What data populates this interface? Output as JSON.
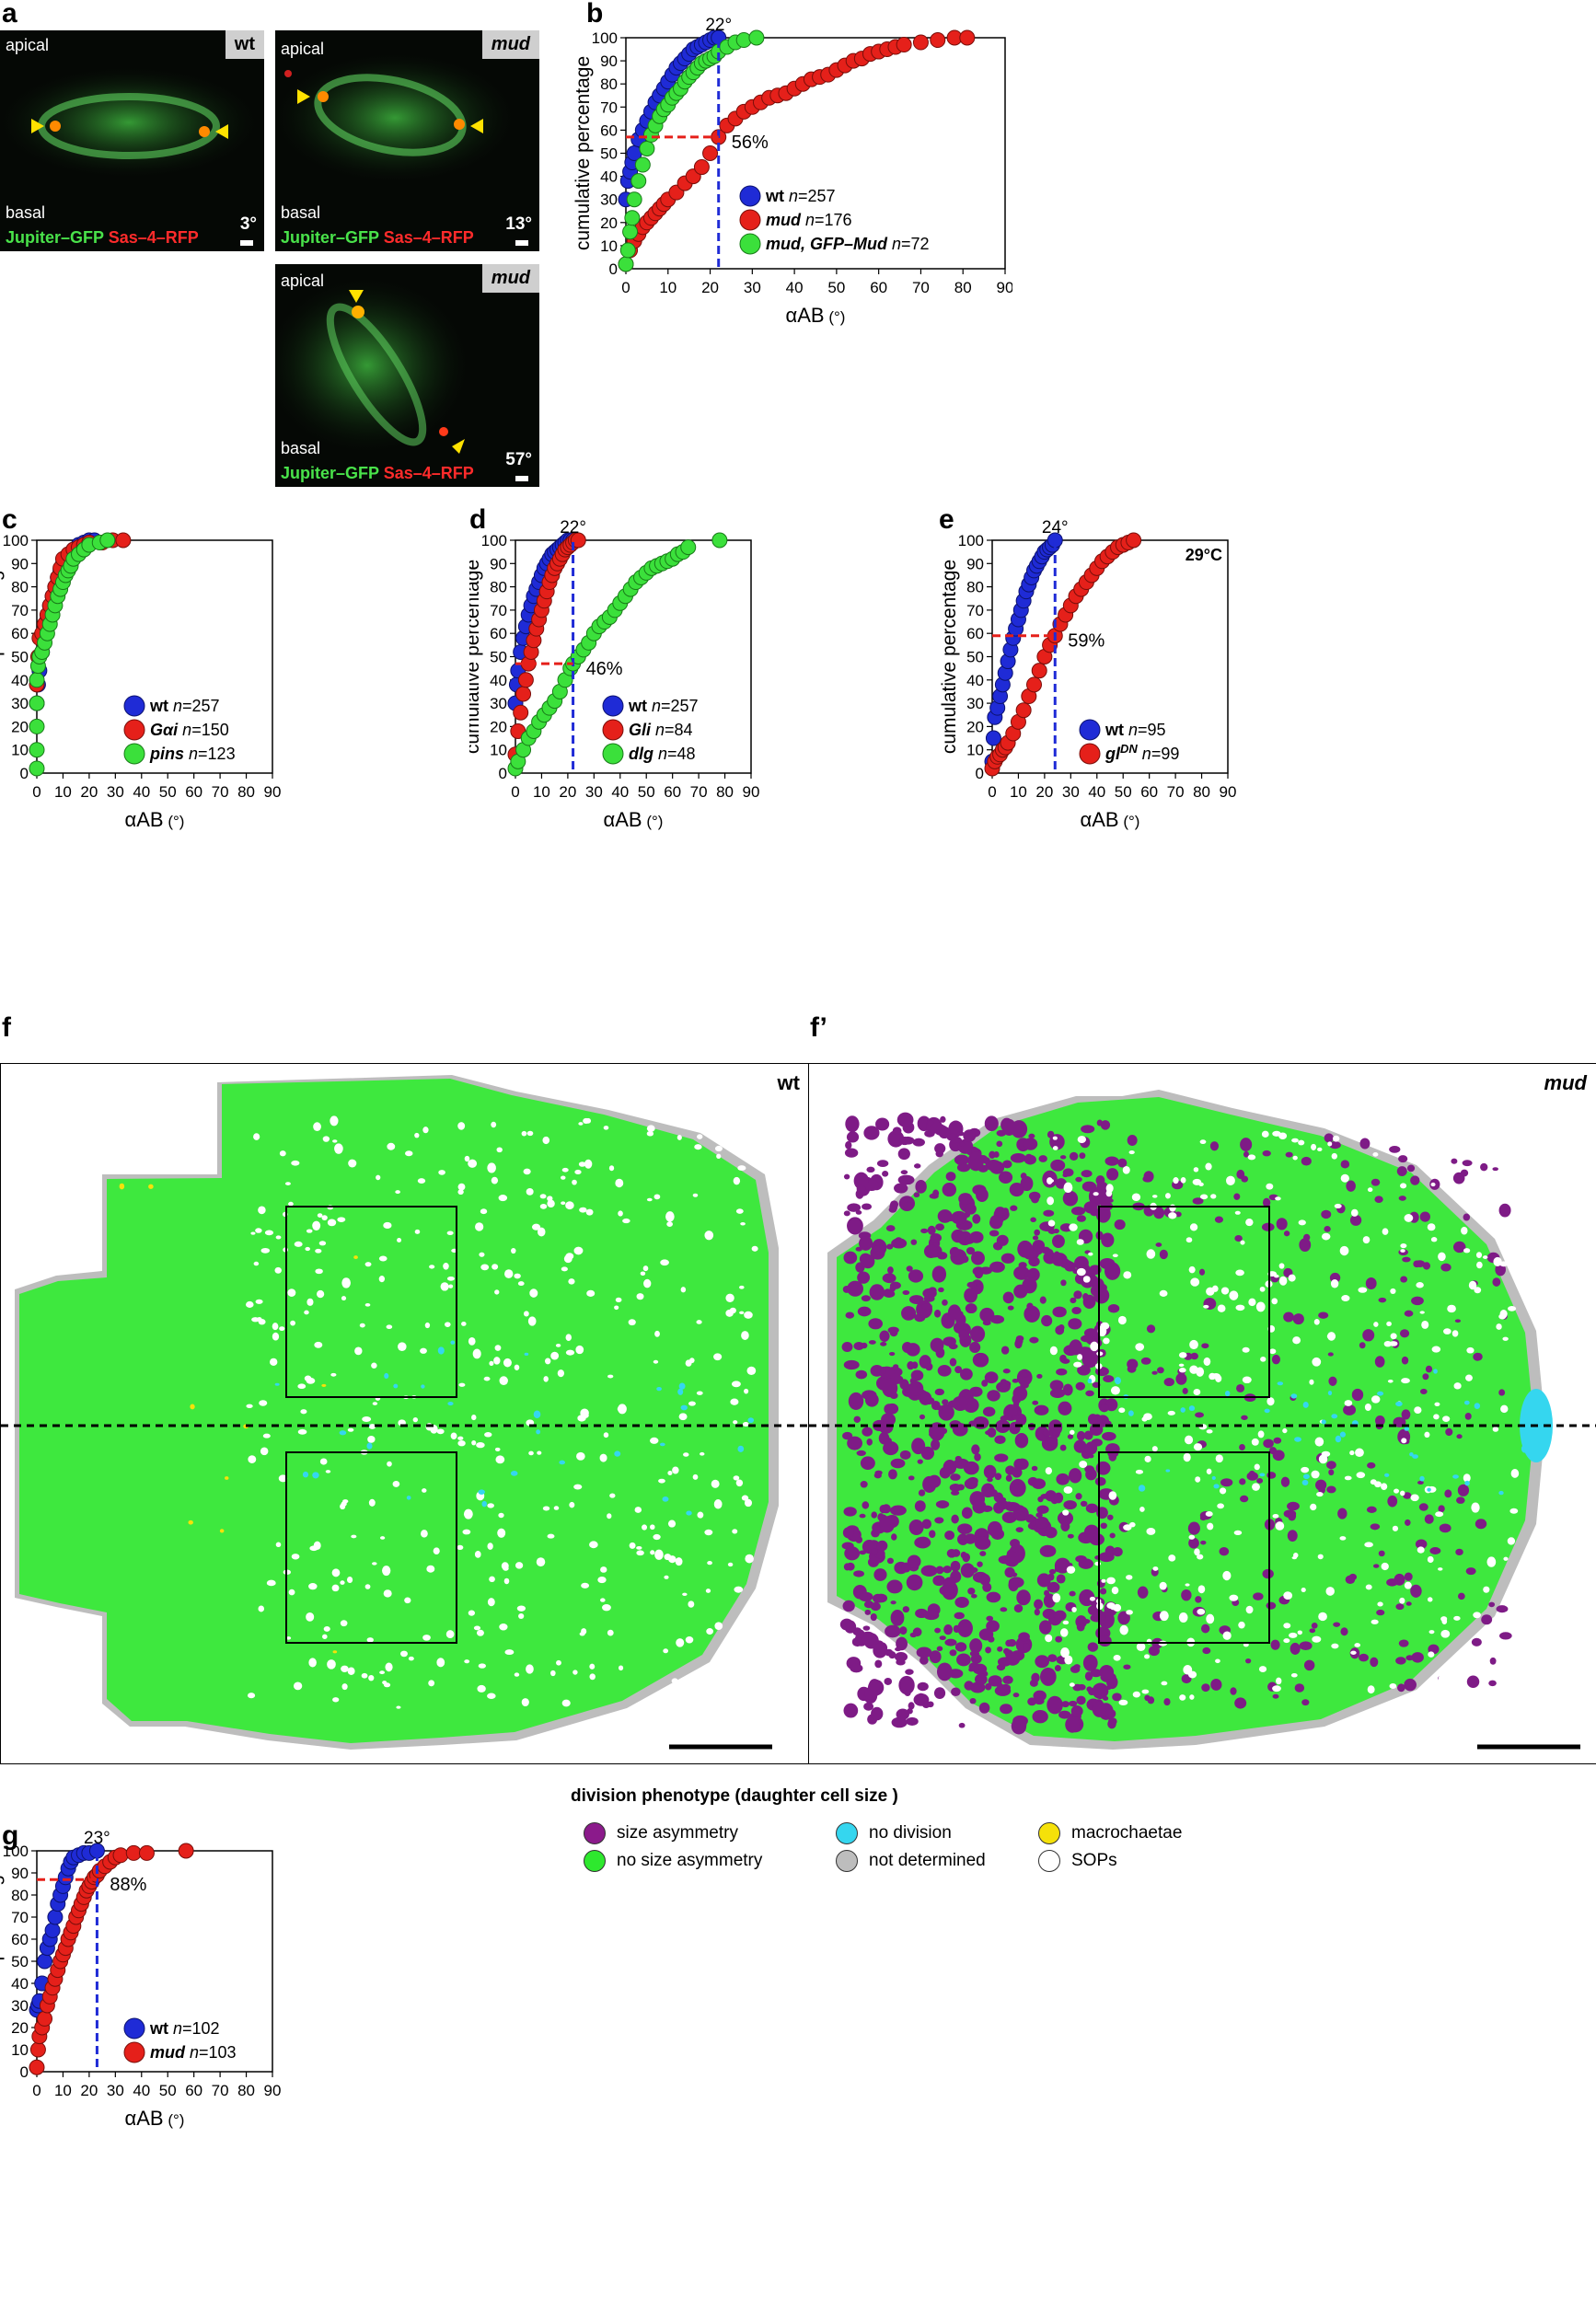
{
  "panels": {
    "a": {
      "letter": "a",
      "images": [
        {
          "tag": "wt",
          "top": "apical",
          "bottom": "basal",
          "angle": "3°",
          "cap_green": "Jupiter–GFP",
          "cap_red": "Sas–4–RFP"
        },
        {
          "tag": "mud",
          "top": "apical",
          "bottom": "basal",
          "angle": "13°",
          "cap_green": "Jupiter–GFP",
          "cap_red": "Sas–4–RFP"
        },
        {
          "tag": "mud",
          "top": "apical",
          "bottom": "basal",
          "angle": "57°",
          "cap_green": "Jupiter–GFP",
          "cap_red": "Sas–4–RFP"
        }
      ]
    },
    "b": {
      "letter": "b"
    },
    "c": {
      "letter": "c"
    },
    "d": {
      "letter": "d"
    },
    "e": {
      "letter": "e"
    },
    "f": {
      "letter": "f",
      "tag": "wt"
    },
    "f2": {
      "letter": "f’",
      "tag": "mud"
    },
    "g": {
      "letter": "g"
    }
  },
  "legend": {
    "title": "division phenotype (daughter cell size )",
    "items": [
      {
        "label": "size asymmetry",
        "color": "#8b1a8b"
      },
      {
        "label": "no size asymmetry",
        "color": "#2ee82e"
      },
      {
        "label": "no division",
        "color": "#35d6ef"
      },
      {
        "label": "not determined",
        "color": "#bdbdbd"
      },
      {
        "label": "macrochaetae",
        "color": "#f5e10a"
      },
      {
        "label": "SOPs",
        "color": "#ffffff"
      }
    ]
  },
  "colors": {
    "wt": "#1f2bd6",
    "red": "#e5201a",
    "green": "#3be03b",
    "map_green": "#3ee83e",
    "map_purple": "#7e1b86"
  },
  "chart_data": [
    {
      "id": "b",
      "type": "scatter",
      "ylabel": "cumulative percentage",
      "xlabel": "αAB (°)",
      "xlim": [
        0,
        90
      ],
      "ylim": [
        0,
        100
      ],
      "xticks": [
        0,
        10,
        20,
        30,
        40,
        50,
        60,
        70,
        80,
        90
      ],
      "yticks": [
        0,
        10,
        20,
        30,
        40,
        50,
        60,
        70,
        80,
        90,
        100
      ],
      "annotations": {
        "angle": "22°",
        "percent": "56%",
        "vline_x": 22,
        "hline_y": 57
      },
      "series": [
        {
          "name": "wt",
          "n": "n=257",
          "color": "#1f2bd6",
          "x": [
            0,
            0.5,
            1,
            1.5,
            2,
            3,
            4,
            5,
            6,
            7,
            8,
            9,
            10,
            11,
            12,
            13,
            14,
            15,
            16,
            17,
            18,
            19,
            20,
            21,
            22
          ],
          "y": [
            30,
            38,
            42,
            46,
            50,
            56,
            60,
            64,
            68,
            72,
            75,
            78,
            81,
            84,
            87,
            89,
            91,
            93,
            95,
            96,
            97,
            98,
            99,
            100,
            100
          ]
        },
        {
          "name": "mud",
          "n": "n=176",
          "color": "#e5201a",
          "x": [
            0,
            1,
            2,
            3,
            4,
            5,
            6,
            7,
            8,
            9,
            10,
            12,
            14,
            16,
            18,
            20,
            22,
            24,
            26,
            28,
            30,
            32,
            34,
            36,
            38,
            40,
            42,
            44,
            46,
            48,
            50,
            52,
            54,
            56,
            58,
            60,
            62,
            64,
            66,
            70,
            74,
            78,
            81
          ],
          "y": [
            2,
            8,
            12,
            15,
            18,
            20,
            22,
            24,
            26,
            28,
            30,
            33,
            37,
            40,
            44,
            50,
            57,
            62,
            65,
            68,
            70,
            72,
            74,
            75,
            76,
            78,
            80,
            82,
            83,
            84,
            86,
            88,
            90,
            91,
            93,
            94,
            95,
            96,
            97,
            98,
            99,
            100,
            100
          ]
        },
        {
          "name": "mud, GFP–Mud",
          "n": "n=72",
          "color": "#3be03b",
          "x": [
            0,
            0.5,
            1,
            1.5,
            2,
            3,
            4,
            5,
            6,
            7,
            8,
            9,
            10,
            11,
            12,
            13,
            14,
            15,
            16,
            17,
            18,
            19,
            20,
            21,
            22,
            24,
            26,
            28,
            31
          ],
          "y": [
            2,
            8,
            16,
            22,
            30,
            38,
            45,
            52,
            58,
            62,
            66,
            69,
            71,
            74,
            76,
            78,
            81,
            83,
            85,
            87,
            89,
            90,
            91,
            92,
            94,
            96,
            98,
            99,
            100
          ]
        }
      ]
    },
    {
      "id": "c",
      "type": "scatter",
      "ylabel": "cumulative percentage",
      "xlabel": "αAB (°)",
      "xlim": [
        0,
        90
      ],
      "ylim": [
        0,
        100
      ],
      "xticks": [
        0,
        10,
        20,
        30,
        40,
        50,
        60,
        70,
        80,
        90
      ],
      "yticks": [
        0,
        10,
        20,
        30,
        40,
        50,
        60,
        70,
        80,
        90,
        100
      ],
      "series": [
        {
          "name": "wt",
          "n": "n=257",
          "color": "#1f2bd6",
          "x": [
            0,
            0.5,
            1,
            2,
            3,
            4,
            5,
            6,
            7,
            8,
            9,
            10,
            12,
            14,
            16,
            18,
            20,
            22
          ],
          "y": [
            30,
            38,
            44,
            52,
            60,
            66,
            72,
            76,
            80,
            84,
            87,
            90,
            93,
            96,
            98,
            99,
            100,
            100
          ]
        },
        {
          "name": "Gαi",
          "n": "n=150",
          "color": "#e5201a",
          "x": [
            0,
            0.5,
            1,
            2,
            3,
            4,
            5,
            6,
            7,
            8,
            9,
            10,
            12,
            14,
            16,
            18,
            20,
            25,
            29,
            33
          ],
          "y": [
            38,
            50,
            58,
            60,
            64,
            68,
            72,
            76,
            80,
            84,
            88,
            92,
            94,
            96,
            97,
            98,
            99,
            99,
            100,
            100
          ]
        },
        {
          "name": "pins",
          "n": "n=123",
          "color": "#3be03b",
          "x": [
            0,
            0,
            0,
            0,
            0,
            0.5,
            1,
            2,
            3,
            4,
            5,
            6,
            7,
            8,
            9,
            10,
            11,
            12,
            13,
            14,
            16,
            18,
            20,
            24,
            27
          ],
          "y": [
            2,
            10,
            20,
            30,
            40,
            46,
            50,
            52,
            56,
            60,
            64,
            68,
            72,
            76,
            79,
            82,
            85,
            87,
            89,
            92,
            94,
            96,
            98,
            99,
            100
          ]
        }
      ]
    },
    {
      "id": "d",
      "type": "scatter",
      "ylabel": "cumulative percentage",
      "xlabel": "αAB (°)",
      "xlim": [
        0,
        90
      ],
      "ylim": [
        0,
        100
      ],
      "xticks": [
        0,
        10,
        20,
        30,
        40,
        50,
        60,
        70,
        80,
        90
      ],
      "yticks": [
        0,
        10,
        20,
        30,
        40,
        50,
        60,
        70,
        80,
        90,
        100
      ],
      "annotations": {
        "angle": "22°",
        "percent": "46%",
        "vline_x": 22,
        "hline_y": 47
      },
      "series": [
        {
          "name": "wt",
          "n": "n=257",
          "color": "#1f2bd6",
          "x": [
            0,
            0.5,
            1,
            2,
            3,
            4,
            5,
            6,
            7,
            8,
            9,
            10,
            11,
            12,
            13,
            14,
            15,
            16,
            17,
            18,
            19,
            20,
            21,
            22
          ],
          "y": [
            30,
            38,
            44,
            52,
            58,
            63,
            68,
            72,
            76,
            79,
            82,
            85,
            88,
            90,
            92,
            94,
            95,
            96,
            97,
            98,
            99,
            100,
            100,
            100
          ]
        },
        {
          "name": "Gli",
          "n": "n=84",
          "color": "#e5201a",
          "x": [
            0,
            1,
            2,
            3,
            4,
            5,
            6,
            7,
            8,
            9,
            10,
            11,
            12,
            13,
            14,
            15,
            16,
            17,
            18,
            19,
            20,
            21,
            22,
            23,
            24
          ],
          "y": [
            8,
            18,
            26,
            34,
            40,
            47,
            52,
            57,
            62,
            66,
            70,
            74,
            78,
            82,
            85,
            88,
            90,
            92,
            94,
            96,
            97,
            98,
            99,
            100,
            100
          ]
        },
        {
          "name": "dlg",
          "n": "n=48",
          "color": "#3be03b",
          "x": [
            0,
            1,
            3,
            5,
            7,
            9,
            11,
            13,
            15,
            17,
            19,
            21,
            22,
            24,
            26,
            28,
            30,
            32,
            34,
            36,
            38,
            40,
            42,
            44,
            46,
            48,
            50,
            52,
            54,
            56,
            58,
            60,
            62,
            64,
            66,
            78
          ],
          "y": [
            2,
            5,
            10,
            15,
            18,
            22,
            25,
            28,
            31,
            35,
            40,
            45,
            47,
            50,
            53,
            56,
            60,
            63,
            65,
            67,
            70,
            73,
            76,
            79,
            82,
            84,
            86,
            88,
            89,
            90,
            91,
            92,
            94,
            95,
            97,
            100
          ]
        }
      ]
    },
    {
      "id": "e",
      "type": "scatter",
      "ylabel": "cumulative percentage",
      "xlabel": "αAB (°)",
      "xlim": [
        0,
        90
      ],
      "ylim": [
        0,
        100
      ],
      "xticks": [
        0,
        10,
        20,
        30,
        40,
        50,
        60,
        70,
        80,
        90
      ],
      "yticks": [
        0,
        10,
        20,
        30,
        40,
        50,
        60,
        70,
        80,
        90,
        100
      ],
      "annotations": {
        "angle": "24°",
        "percent": "59%",
        "vline_x": 24,
        "hline_y": 59,
        "temperature": "29°C"
      },
      "series": [
        {
          "name": "wt",
          "n": "n=95",
          "color": "#1f2bd6",
          "x": [
            0,
            0.5,
            1,
            2,
            3,
            4,
            5,
            6,
            7,
            8,
            9,
            10,
            11,
            12,
            13,
            14,
            15,
            16,
            17,
            18,
            19,
            20,
            21,
            22,
            23,
            24
          ],
          "y": [
            5,
            15,
            24,
            28,
            33,
            38,
            43,
            48,
            53,
            58,
            62,
            66,
            70,
            74,
            78,
            81,
            84,
            87,
            89,
            91,
            93,
            95,
            96,
            97,
            98,
            100
          ]
        },
        {
          "name": "glDN",
          "n": "n=99",
          "color": "#e5201a",
          "x": [
            0,
            1,
            2,
            3,
            4,
            5,
            6,
            8,
            10,
            12,
            14,
            16,
            18,
            20,
            22,
            24,
            26,
            28,
            30,
            32,
            34,
            36,
            38,
            40,
            42,
            44,
            46,
            48,
            50,
            52,
            54
          ],
          "y": [
            2,
            5,
            7,
            8,
            10,
            11,
            13,
            17,
            22,
            27,
            33,
            38,
            44,
            50,
            55,
            59,
            64,
            68,
            72,
            76,
            79,
            82,
            85,
            88,
            91,
            93,
            95,
            97,
            98,
            99,
            100
          ]
        }
      ]
    },
    {
      "id": "g",
      "type": "scatter",
      "ylabel": "cumulative percentage",
      "xlabel": "αAB (°)",
      "xlim": [
        0,
        90
      ],
      "ylim": [
        0,
        100
      ],
      "xticks": [
        0,
        10,
        20,
        30,
        40,
        50,
        60,
        70,
        80,
        90
      ],
      "yticks": [
        0,
        10,
        20,
        30,
        40,
        50,
        60,
        70,
        80,
        90,
        100
      ],
      "annotations": {
        "angle": "23°",
        "percent": "88%",
        "vline_x": 23,
        "hline_y": 87
      },
      "series": [
        {
          "name": "wt",
          "n": "n=102",
          "color": "#1f2bd6",
          "x": [
            0,
            0.5,
            1,
            2,
            3,
            4,
            5,
            6,
            7,
            8,
            9,
            10,
            11,
            12,
            13,
            14,
            16,
            18,
            20,
            23
          ],
          "y": [
            28,
            30,
            32,
            40,
            50,
            56,
            60,
            64,
            70,
            76,
            80,
            84,
            88,
            92,
            95,
            97,
            98,
            99,
            99,
            100
          ]
        },
        {
          "name": "mud",
          "n": "n=103",
          "color": "#e5201a",
          "x": [
            0,
            0.5,
            1,
            2,
            3,
            4,
            5,
            6,
            7,
            8,
            9,
            10,
            11,
            12,
            13,
            14,
            15,
            16,
            17,
            18,
            19,
            20,
            21,
            22,
            23,
            24,
            26,
            28,
            30,
            32,
            37,
            42,
            57
          ],
          "y": [
            2,
            10,
            16,
            20,
            24,
            30,
            34,
            38,
            42,
            46,
            50,
            53,
            56,
            60,
            63,
            66,
            70,
            73,
            76,
            79,
            82,
            84,
            86,
            88,
            89,
            91,
            93,
            95,
            97,
            98,
            99,
            99,
            100
          ]
        }
      ]
    }
  ]
}
